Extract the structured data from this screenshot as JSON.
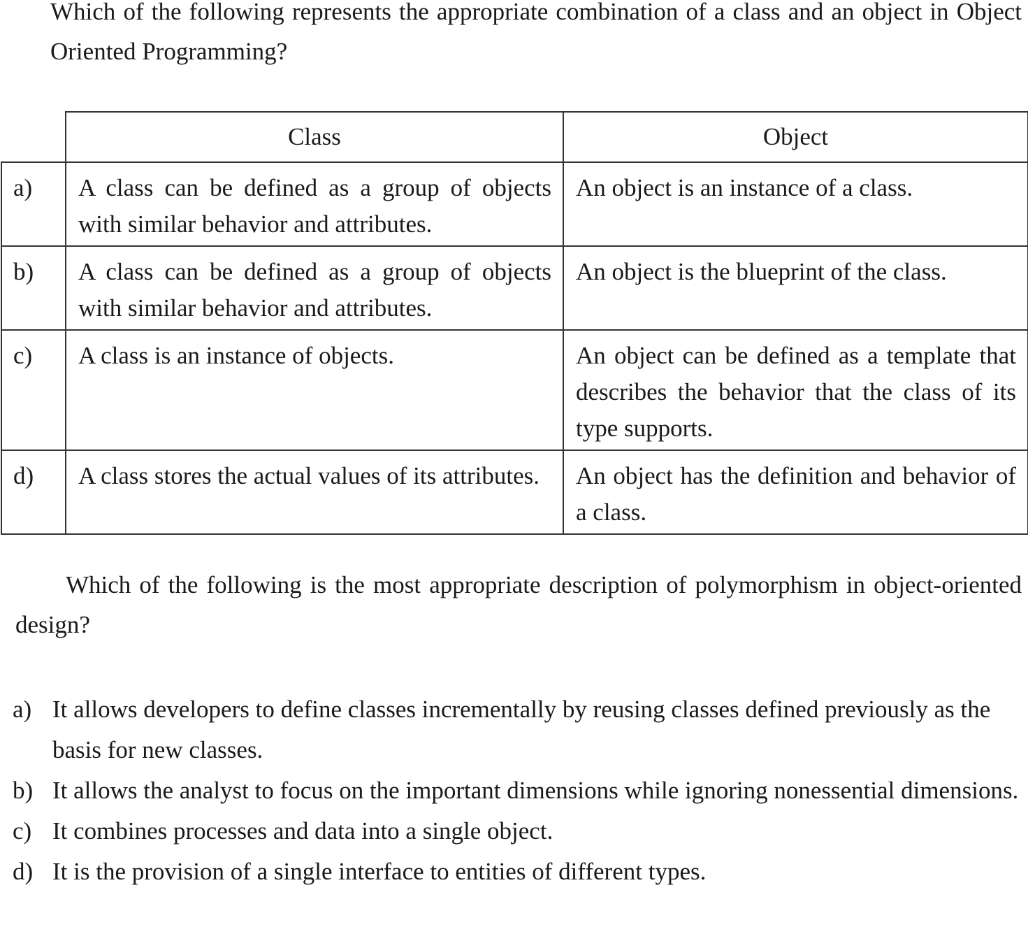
{
  "question1": {
    "text": "Which of the following represents the appropriate combination of a class and an object in Object Oriented Programming?",
    "table": {
      "headers": [
        "Class",
        "Object"
      ],
      "rows": [
        {
          "label": "a)",
          "class": "A class can be defined as a group of objects with similar behavior and attributes.",
          "object": "An object is an instance of a class."
        },
        {
          "label": "b)",
          "class": "A class can be defined as a group of objects with similar behavior and attributes.",
          "object": "An object is the blueprint of the class."
        },
        {
          "label": "c)",
          "class": "A class is an instance of objects.",
          "object": "An object can be defined as a template that describes the behavior that the class of its type supports."
        },
        {
          "label": "d)",
          "class": "A class stores the actual values of its attributes.",
          "object": "An object has the definition and behavior of a class."
        }
      ]
    }
  },
  "question2": {
    "text": "Which of the following is the most appropriate description of polymorphism in object-oriented design?",
    "options": [
      {
        "label": "a)",
        "text": "It allows developers to define classes incrementally by reusing classes defined previously as the basis for new classes."
      },
      {
        "label": "b)",
        "text": "It allows the analyst to focus on the important dimensions while ignoring nonessential dimensions."
      },
      {
        "label": "c)",
        "text": "It combines processes and data into a single object."
      },
      {
        "label": "d)",
        "text": "It is the provision of a single interface to entities of different types."
      }
    ]
  }
}
